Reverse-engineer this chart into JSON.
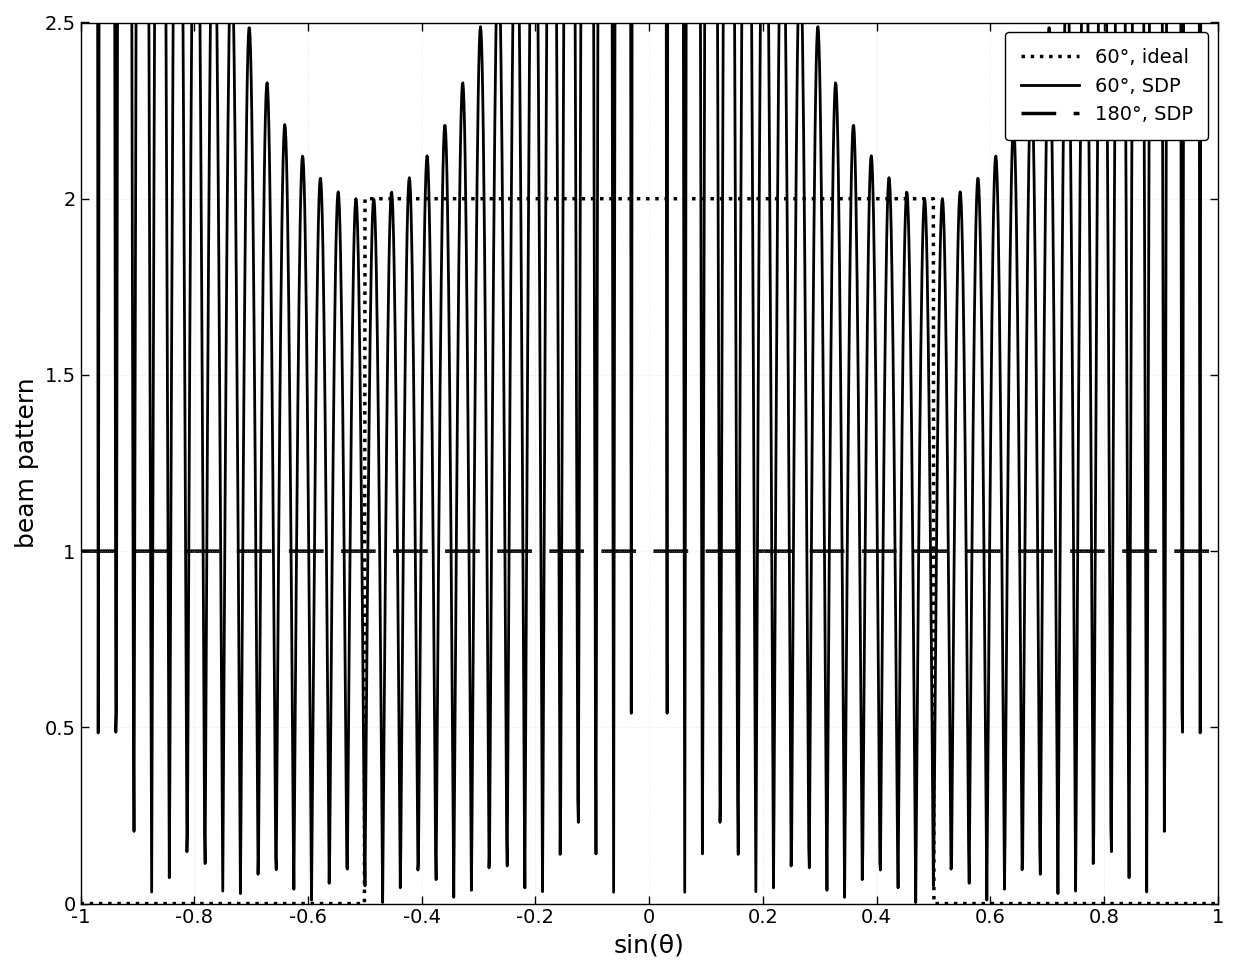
{
  "title": "",
  "xlabel": "sin(θ)",
  "ylabel": "beam pattern",
  "xlim": [
    -1,
    1
  ],
  "ylim": [
    0,
    2.5
  ],
  "xticks": [
    -1,
    -0.8,
    -0.6,
    -0.4,
    -0.2,
    0,
    0.2,
    0.4,
    0.6,
    0.8,
    1
  ],
  "yticks": [
    0,
    0.5,
    1,
    1.5,
    2,
    2.5
  ],
  "legend_labels": [
    "60°, ideal",
    "60°, SDP",
    "180°, SDP"
  ],
  "legend_loc": "upper right",
  "background_color": "#ffffff",
  "line_color": "#000000",
  "passband_low": -0.5,
  "passband_high": 0.5,
  "ideal_level": 2.0,
  "dashed_level": 1.0,
  "num_points": 2000,
  "N_antennas": 32,
  "figsize": [
    12.39,
    9.72
  ],
  "dpi": 100
}
